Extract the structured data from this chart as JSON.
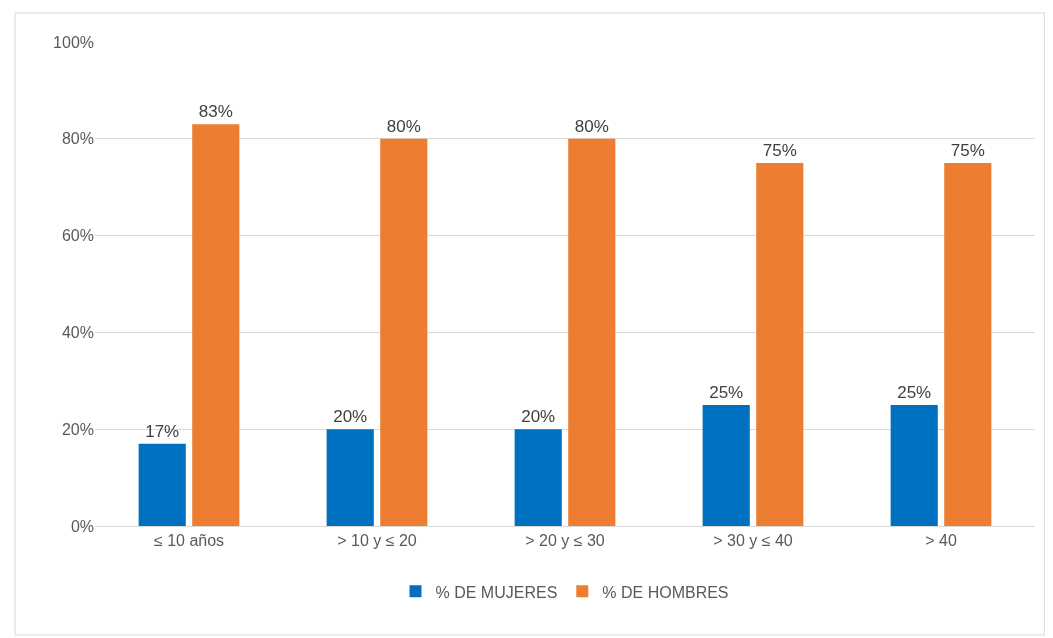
{
  "chart_data": {
    "type": "bar",
    "categories": [
      "≤ 10 años",
      "> 10 y ≤ 20",
      "> 20 y ≤ 30",
      "> 30 y ≤ 40",
      "> 40"
    ],
    "series": [
      {
        "name": "% DE MUJERES",
        "color": "#0070c0",
        "values": [
          17,
          20,
          20,
          25,
          25
        ],
        "value_labels": [
          "17%",
          "20%",
          "20%",
          "25%",
          "25%"
        ]
      },
      {
        "name": "% DE HOMBRES",
        "color": "#ed7d31",
        "values": [
          83,
          80,
          80,
          75,
          75
        ],
        "value_labels": [
          "83%",
          "80%",
          "80%",
          "75%",
          "75%"
        ]
      }
    ],
    "ylim": [
      0,
      100
    ],
    "yticks": [
      {
        "value": 0,
        "label": "0%"
      },
      {
        "value": 20,
        "label": "20%"
      },
      {
        "value": 40,
        "label": "40%"
      },
      {
        "value": 60,
        "label": "60%"
      },
      {
        "value": 80,
        "label": "80%"
      },
      {
        "value": 100,
        "label": "100%"
      }
    ],
    "grid": "y",
    "legend": "bottom"
  }
}
